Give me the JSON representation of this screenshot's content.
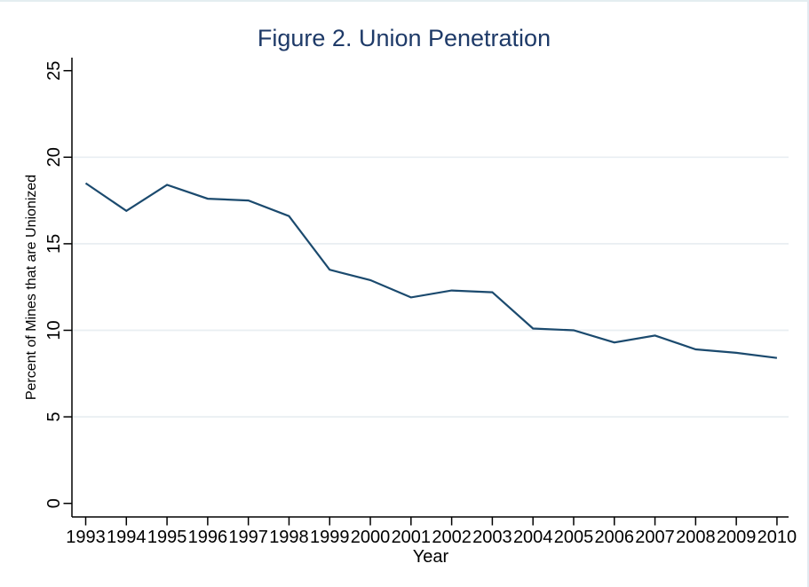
{
  "figure": {
    "title_color": "#1e3a68",
    "line_color": "#1b4a6e",
    "grid_color": "#e9eef2",
    "axis_color": "#000000",
    "background_color": "#ffffff"
  },
  "chart_data": {
    "type": "line",
    "title": "Figure 2. Union Penetration",
    "xlabel": "Year",
    "ylabel": "Percent of Mines that are Unionized",
    "categories": [
      "1993",
      "1994",
      "1995",
      "1996",
      "1997",
      "1998",
      "1999",
      "2000",
      "2001",
      "2002",
      "2003",
      "2004",
      "2005",
      "2006",
      "2007",
      "2008",
      "2009",
      "2010"
    ],
    "series": [
      {
        "name": "Percent of Mines that are Unionized",
        "values": [
          18.5,
          16.9,
          18.4,
          17.6,
          17.5,
          16.6,
          13.5,
          12.9,
          11.9,
          12.3,
          12.2,
          10.1,
          10.0,
          9.3,
          9.7,
          8.9,
          8.7,
          8.4
        ]
      }
    ],
    "ylim": [
      0,
      25
    ],
    "yticks": [
      0,
      5,
      10,
      15,
      20,
      25
    ],
    "grid_values": [
      5,
      10,
      15,
      20
    ],
    "grid": "horizontal-only",
    "legend": "none"
  }
}
